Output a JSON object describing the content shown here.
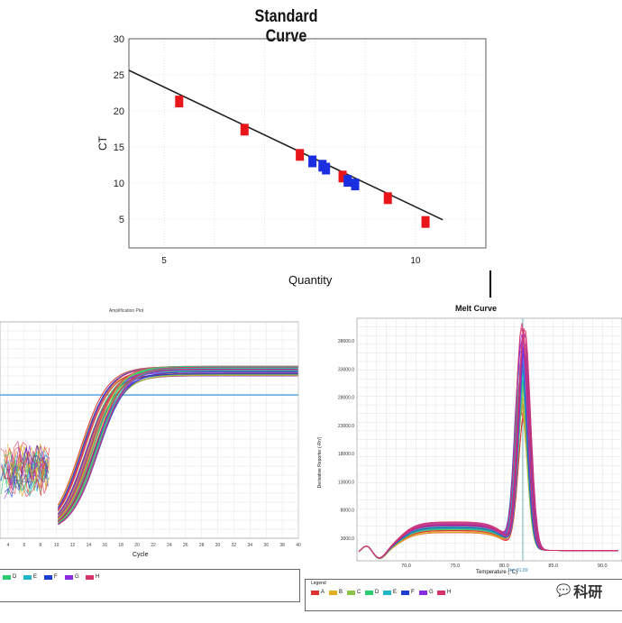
{
  "standard_curve": {
    "title": "Standard Curve",
    "xlabel": "Quantity",
    "ylabel": "CT",
    "x_ticks": [
      "5",
      "10"
    ],
    "y_ticks": [
      "5",
      "10",
      "15",
      "20",
      "25",
      "30"
    ]
  },
  "amplification": {
    "title": "Amplification Plot",
    "xlabel": "Cycle",
    "x_ticks": [
      "4",
      "6",
      "8",
      "10",
      "12",
      "14",
      "16",
      "18",
      "20",
      "22",
      "24",
      "26",
      "28",
      "30",
      "32",
      "34",
      "36",
      "38",
      "40"
    ],
    "legend": [
      {
        "label": "D",
        "color": "#2ecc71"
      },
      {
        "label": "E",
        "color": "#1fb6c9"
      },
      {
        "label": "F",
        "color": "#1c3fd1"
      },
      {
        "label": "G",
        "color": "#8a2be2"
      },
      {
        "label": "H",
        "color": "#d6336c"
      }
    ]
  },
  "melt": {
    "title": "Melt Curve",
    "xlabel": "Temperature (°C)",
    "ylabel": "Derivative Reporter (-Rn')",
    "tm_label": "Tm: 81.89",
    "x_ticks": [
      "70.0",
      "75.0",
      "80.0",
      "85.0",
      "90.0"
    ],
    "y_ticks": [
      "3000.0",
      "8000.0",
      "13000.0",
      "18000.0",
      "23000.0",
      "28000.0",
      "33000.0",
      "38000.0"
    ],
    "legend_title": "Legend",
    "legend": [
      {
        "label": "A",
        "color": "#e03131"
      },
      {
        "label": "B",
        "color": "#e0b020"
      },
      {
        "label": "C",
        "color": "#8bc34a"
      },
      {
        "label": "D",
        "color": "#2ecc71"
      },
      {
        "label": "E",
        "color": "#1fb6c9"
      },
      {
        "label": "F",
        "color": "#1c3fd1"
      },
      {
        "label": "G",
        "color": "#8a2be2"
      },
      {
        "label": "H",
        "color": "#d6336c"
      }
    ]
  },
  "watermark": "科研",
  "chart_data": [
    {
      "type": "scatter",
      "title": "Standard Curve",
      "xlabel": "Quantity",
      "ylabel": "CT",
      "xlim": [
        4.3,
        11.4
      ],
      "ylim": [
        1,
        30
      ],
      "fit_line": {
        "slope": -3.32,
        "intercept": 39.9
      },
      "series": [
        {
          "name": "standards",
          "color": "#e8161a",
          "x": [
            5.3,
            6.6,
            7.7,
            8.55,
            9.45,
            10.2
          ],
          "y": [
            21.3,
            17.4,
            13.9,
            10.9,
            7.9,
            4.6
          ]
        },
        {
          "name": "samples",
          "color": "#1c2fe0",
          "x": [
            7.95,
            8.15,
            8.22,
            8.65,
            8.8
          ],
          "y": [
            13.0,
            12.4,
            12.0,
            10.3,
            9.8
          ]
        }
      ]
    },
    {
      "type": "line",
      "title": "Amplification Plot",
      "xlabel": "Cycle",
      "xlim": [
        3,
        40
      ],
      "plateau": 1.0,
      "threshold": 0.5,
      "series_colors": [
        "#e03131",
        "#e0b020",
        "#8bc34a",
        "#2ecc71",
        "#1fb6c9",
        "#1c3fd1",
        "#8a2be2",
        "#d6336c"
      ]
    },
    {
      "type": "line",
      "title": "Melt Curve",
      "xlabel": "Temperature (°C)",
      "ylabel": "Derivative Reporter (-Rn')",
      "xlim": [
        65,
        92
      ],
      "ylim": [
        -1000,
        42000
      ],
      "peak_temperature": 81.89,
      "peak_height_range": [
        24000,
        40000
      ],
      "series_colors": [
        "#e03131",
        "#e0b020",
        "#8bc34a",
        "#2ecc71",
        "#1fb6c9",
        "#1c3fd1",
        "#8a2be2",
        "#d6336c"
      ]
    }
  ]
}
